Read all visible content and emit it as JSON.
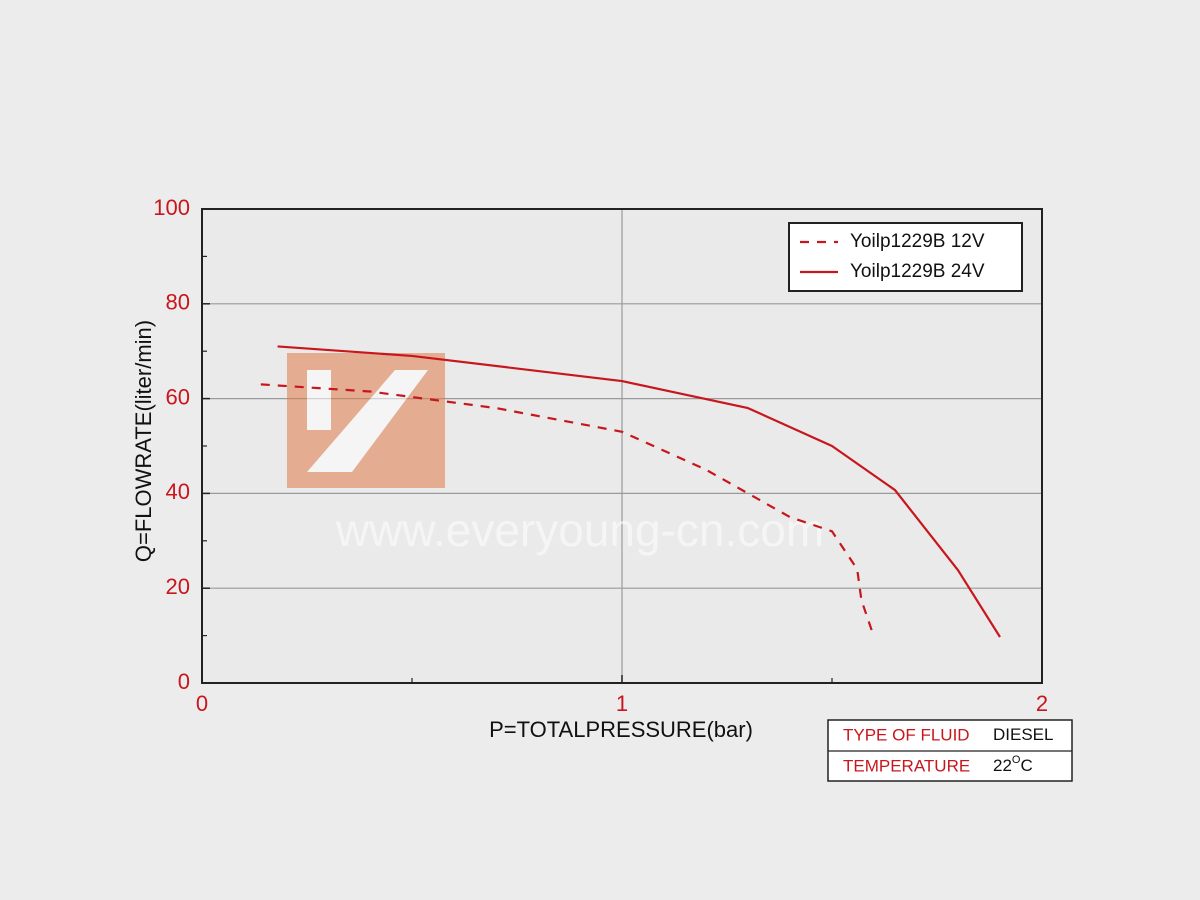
{
  "chart_data": {
    "type": "line",
    "xlabel": "P=TOTALPRESSURE(bar)",
    "ylabel": "Q=FLOWRATE(liter/min)",
    "xlim": [
      0,
      2
    ],
    "ylim": [
      0,
      100
    ],
    "xticks": [
      0,
      1,
      2
    ],
    "yticks": [
      0,
      20,
      40,
      60,
      80,
      100
    ],
    "x_minor_ticks": [
      0.5,
      1.5
    ],
    "y_minor_ticks": [
      10,
      30,
      50,
      70,
      90
    ],
    "grid": true,
    "legend": "upper right",
    "watermark": "www.everyoung-cn.com",
    "series": [
      {
        "name": "Yoilp1229B 12V",
        "color": "#c8161d",
        "style": "dashed",
        "x": [
          0.14,
          0.4,
          0.7,
          1.0,
          1.2,
          1.3,
          1.4,
          1.5,
          1.56,
          1.57,
          1.6
        ],
        "values": [
          63,
          61.5,
          58,
          53,
          45,
          40,
          35,
          32,
          24,
          17.5,
          9.7
        ]
      },
      {
        "name": "Yoilp1229B 24V",
        "color": "#c8161d",
        "style": "solid",
        "x": [
          0.18,
          0.5,
          1.0,
          1.3,
          1.5,
          1.65,
          1.8,
          1.9
        ],
        "values": [
          71,
          69,
          63.7,
          58,
          50,
          40.7,
          23.8,
          9.7
        ]
      }
    ],
    "info_table": [
      {
        "label": "TYPE OF FLUID",
        "value": "DIESEL"
      },
      {
        "label": "TEMPERATURE",
        "value": "22",
        "superscript": "O",
        "unit": "C"
      }
    ]
  }
}
